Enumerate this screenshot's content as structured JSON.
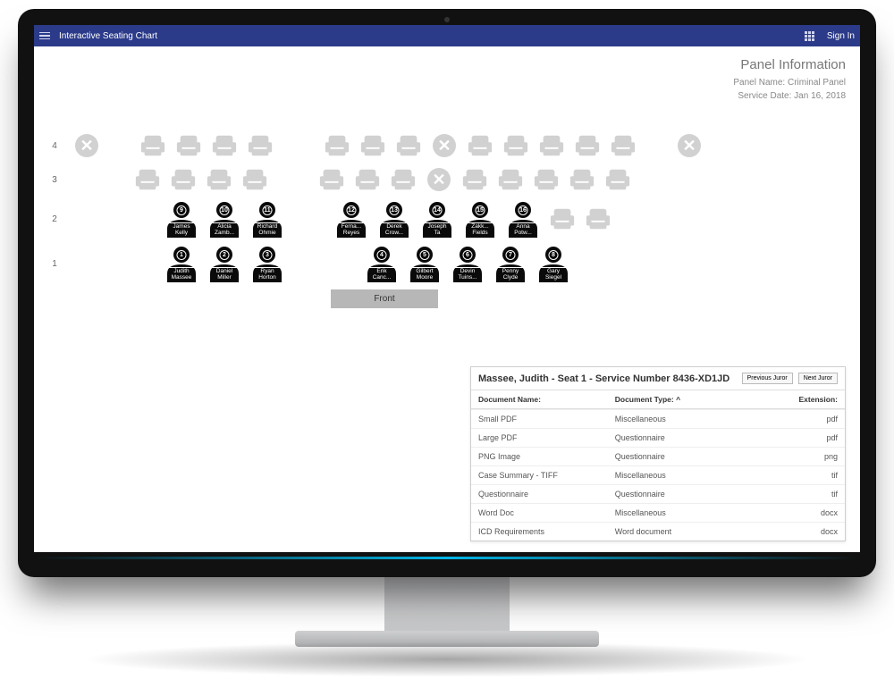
{
  "header": {
    "title": "Interactive Seating Chart",
    "signin": "Sign In"
  },
  "panel": {
    "heading": "Panel Information",
    "name_label": "Panel Name:",
    "name_value": "Criminal Panel",
    "date_label": "Service Date:",
    "date_value": "Jan 16, 2018"
  },
  "front_label": "Front",
  "colors": {
    "header_bg": "#2b3a89",
    "empty_seat": "#d1d1d1",
    "juror_fill": "#0a0a0a"
  },
  "rows": [
    {
      "label": "4",
      "cells": [
        {
          "t": "x"
        },
        {
          "t": "gap"
        },
        {
          "t": "e"
        },
        {
          "t": "e"
        },
        {
          "t": "e"
        },
        {
          "t": "e"
        },
        {
          "t": "gaplg"
        },
        {
          "t": "e"
        },
        {
          "t": "e"
        },
        {
          "t": "e"
        },
        {
          "t": "x"
        },
        {
          "t": "e"
        },
        {
          "t": "e"
        },
        {
          "t": "e"
        },
        {
          "t": "e"
        },
        {
          "t": "e"
        },
        {
          "t": "gap"
        },
        {
          "t": "x"
        }
      ]
    },
    {
      "label": "3",
      "cells": [
        {
          "t": "gap"
        },
        {
          "t": "gap"
        },
        {
          "t": "e"
        },
        {
          "t": "e"
        },
        {
          "t": "e"
        },
        {
          "t": "e"
        },
        {
          "t": "gaplg"
        },
        {
          "t": "e"
        },
        {
          "t": "e"
        },
        {
          "t": "e"
        },
        {
          "t": "x"
        },
        {
          "t": "e"
        },
        {
          "t": "e"
        },
        {
          "t": "e"
        },
        {
          "t": "e"
        },
        {
          "t": "e"
        }
      ]
    },
    {
      "label": "2",
      "cells": [
        {
          "t": "gap"
        },
        {
          "t": "gap"
        },
        {
          "t": "gap"
        },
        {
          "t": "j",
          "num": "9",
          "first": "James",
          "last": "Kelly"
        },
        {
          "t": "j",
          "num": "10",
          "first": "Alicia",
          "last": "Zamb..."
        },
        {
          "t": "j",
          "num": "11",
          "first": "Richard",
          "last": "Ohmie"
        },
        {
          "t": "gaplg"
        },
        {
          "t": "j",
          "num": "12",
          "first": "Ferna...",
          "last": "Reyes"
        },
        {
          "t": "j",
          "num": "13",
          "first": "Derek",
          "last": "Crow..."
        },
        {
          "t": "j",
          "num": "14",
          "first": "Joseph",
          "last": "Ta"
        },
        {
          "t": "j",
          "num": "15",
          "first": "Zakk...",
          "last": "Fields"
        },
        {
          "t": "j",
          "num": "16",
          "first": "Anna",
          "last": "Potw..."
        },
        {
          "t": "e"
        },
        {
          "t": "e"
        }
      ]
    },
    {
      "label": "1",
      "cells": [
        {
          "t": "gap"
        },
        {
          "t": "gap"
        },
        {
          "t": "gap"
        },
        {
          "t": "j",
          "num": "1",
          "first": "Judith",
          "last": "Massee"
        },
        {
          "t": "j",
          "num": "2",
          "first": "Daniel",
          "last": "Miller"
        },
        {
          "t": "j",
          "num": "3",
          "first": "Ryan",
          "last": "Horton"
        },
        {
          "t": "gaplg"
        },
        {
          "t": "gap"
        },
        {
          "t": "j",
          "num": "4",
          "first": "Erik",
          "last": "Canc..."
        },
        {
          "t": "j",
          "num": "5",
          "first": "Gilbert",
          "last": "Moore"
        },
        {
          "t": "j",
          "num": "6",
          "first": "Devin",
          "last": "Tuins..."
        },
        {
          "t": "j",
          "num": "7",
          "first": "Penny",
          "last": "Clyde"
        },
        {
          "t": "j",
          "num": "8",
          "first": "Gary",
          "last": "Siegel"
        }
      ]
    }
  ],
  "docs": {
    "title": "Massee, Judith - Seat 1 - Service Number 8436-XD1JD",
    "prev": "Previous Juror",
    "next": "Next Juror",
    "col1": "Document Name:",
    "col2": "Document Type: ^",
    "col3": "Extension:",
    "rows": [
      {
        "n": "Small PDF",
        "t": "Miscellaneous",
        "e": "pdf"
      },
      {
        "n": "Large PDF",
        "t": "Questionnaire",
        "e": "pdf"
      },
      {
        "n": "PNG Image",
        "t": "Questionnaire",
        "e": "png"
      },
      {
        "n": "Case Summary - TIFF",
        "t": "Miscellaneous",
        "e": "tif"
      },
      {
        "n": "Questionnaire",
        "t": "Questionnaire",
        "e": "tif"
      },
      {
        "n": "Word Doc",
        "t": "Miscellaneous",
        "e": "docx"
      },
      {
        "n": "ICD Requirements",
        "t": "Word document",
        "e": "docx"
      }
    ]
  }
}
